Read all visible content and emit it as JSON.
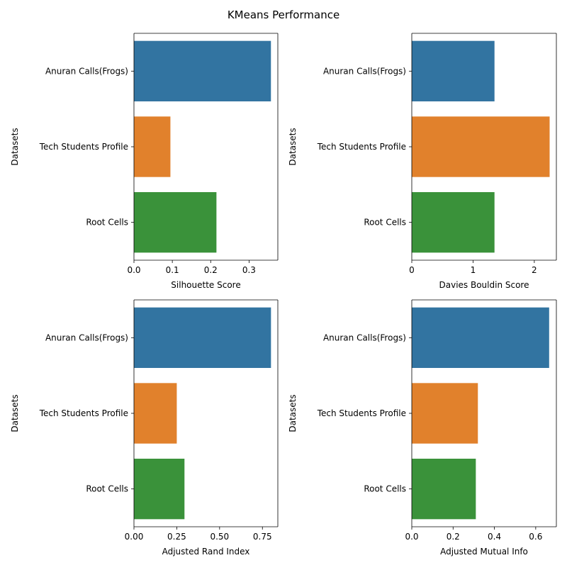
{
  "figure": {
    "title": "KMeans Performance"
  },
  "chart_data": [
    {
      "type": "bar",
      "orientation": "horizontal",
      "categories": [
        "Anuran Calls(Frogs)",
        "Tech Students Profile",
        "Root Cells"
      ],
      "values": [
        0.357,
        0.095,
        0.215
      ],
      "xlabel": "Silhouette Score",
      "ylabel": "Datasets",
      "xlim": [
        0,
        0.375
      ],
      "xticks": [
        0.0,
        0.1,
        0.2,
        0.3
      ],
      "xtick_labels": [
        "0.0",
        "0.1",
        "0.2",
        "0.3"
      ],
      "colors": [
        "#3274a1",
        "#e1812c",
        "#3a923a"
      ]
    },
    {
      "type": "bar",
      "orientation": "horizontal",
      "categories": [
        "Anuran Calls(Frogs)",
        "Tech Students Profile",
        "Root Cells"
      ],
      "values": [
        1.35,
        2.25,
        1.35
      ],
      "xlabel": "Davies Bouldin Score",
      "ylabel": "Datasets",
      "xlim": [
        0,
        2.36
      ],
      "xticks": [
        0,
        1,
        2
      ],
      "xtick_labels": [
        "0",
        "1",
        "2"
      ],
      "colors": [
        "#3274a1",
        "#e1812c",
        "#3a923a"
      ]
    },
    {
      "type": "bar",
      "orientation": "horizontal",
      "categories": [
        "Anuran Calls(Frogs)",
        "Tech Students Profile",
        "Root Cells"
      ],
      "values": [
        0.8,
        0.25,
        0.295
      ],
      "xlabel": "Adjusted Rand Index",
      "ylabel": "Datasets",
      "xlim": [
        0,
        0.84
      ],
      "xticks": [
        0.0,
        0.25,
        0.5,
        0.75
      ],
      "xtick_labels": [
        "0.00",
        "0.25",
        "0.50",
        "0.75"
      ],
      "colors": [
        "#3274a1",
        "#e1812c",
        "#3a923a"
      ]
    },
    {
      "type": "bar",
      "orientation": "horizontal",
      "categories": [
        "Anuran Calls(Frogs)",
        "Tech Students Profile",
        "Root Cells"
      ],
      "values": [
        0.665,
        0.32,
        0.31
      ],
      "xlabel": "Adjusted Mutual Info",
      "ylabel": "Datasets",
      "xlim": [
        0,
        0.7
      ],
      "xticks": [
        0.0,
        0.2,
        0.4,
        0.6
      ],
      "xtick_labels": [
        "0.0",
        "0.2",
        "0.4",
        "0.6"
      ],
      "colors": [
        "#3274a1",
        "#e1812c",
        "#3a923a"
      ]
    }
  ]
}
